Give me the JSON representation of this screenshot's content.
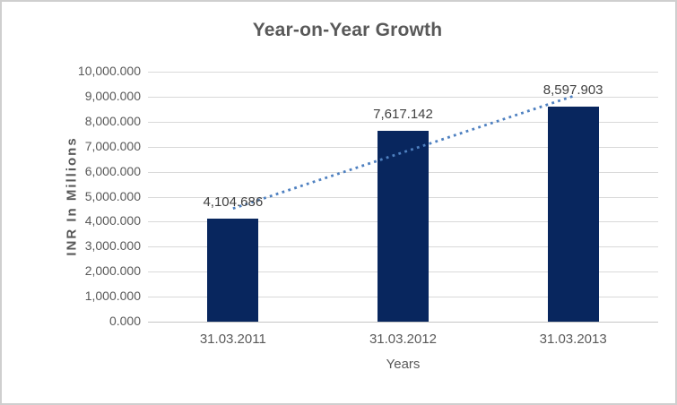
{
  "chart_data": {
    "type": "bar",
    "title": "Year-on-Year Growth",
    "xlabel": "Years",
    "ylabel": "INR In Millions",
    "categories": [
      "31.03.2011",
      "31.03.2012",
      "31.03.2013"
    ],
    "values": [
      4104.686,
      7617.142,
      8597.903
    ],
    "data_labels": [
      "4,104.686",
      "7,617.142",
      "8,597.903"
    ],
    "ylim": [
      0,
      10000
    ],
    "ytick_step": 1000,
    "ytick_labels": [
      "0.000",
      "1,000.000",
      "2,000.000",
      "3,000.000",
      "4,000.000",
      "5,000.000",
      "6,000.000",
      "7,000.000",
      "8,000.000",
      "9,000.000",
      "10,000.000"
    ],
    "grid": true,
    "legend": "none",
    "trendline": {
      "type": "linear",
      "style": "dotted",
      "endpoints_values": [
        4526.6,
        9019.9
      ]
    },
    "colors": {
      "bar": "#08265e",
      "trendline": "#4e80c0",
      "gridline": "#d9d9d9",
      "axis_text": "#595959",
      "data_label_text": "#404040",
      "title_text": "#595959",
      "frame_border": "#cfcfcf"
    }
  }
}
